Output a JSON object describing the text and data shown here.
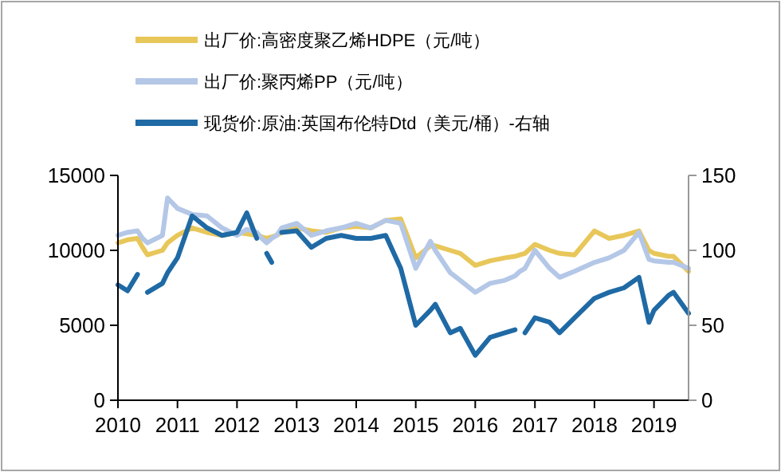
{
  "chart_data": {
    "type": "line",
    "legend": "top",
    "xlim": [
      "2010-01",
      "2019-08"
    ],
    "xticks": [
      "2010",
      "2011",
      "2012",
      "2013",
      "2014",
      "2015",
      "2016",
      "2017",
      "2018",
      "2019"
    ],
    "ylim": [
      0,
      15000
    ],
    "yticks": [
      0,
      5000,
      10000,
      15000
    ],
    "y2lim": [
      0,
      150
    ],
    "y2ticks": [
      0,
      50,
      100,
      150
    ],
    "x": [
      "2010-01",
      "2010-03",
      "2010-05",
      "2010-06",
      "2010-07",
      "2010-10",
      "2010-11",
      "2011-01",
      "2011-04",
      "2011-07",
      "2011-10",
      "2012-01",
      "2012-03",
      "2012-05",
      "2012-06",
      "2012-07",
      "2012-08",
      "2012-09",
      "2012-10",
      "2013-01",
      "2013-04",
      "2013-07",
      "2013-10",
      "2014-01",
      "2014-04",
      "2014-07",
      "2014-10",
      "2015-01",
      "2015-04",
      "2015-05",
      "2015-08",
      "2015-10",
      "2016-01",
      "2016-04",
      "2016-07",
      "2016-09",
      "2016-10",
      "2016-11",
      "2017-01",
      "2017-04",
      "2017-06",
      "2017-09",
      "2018-01",
      "2018-04",
      "2018-07",
      "2018-10",
      "2018-12",
      "2019-01",
      "2019-04",
      "2019-05",
      "2019-08"
    ],
    "series": [
      {
        "name": "出厂价:高密度聚乙烯HDPE（元/吨）",
        "color": "#e8c75a",
        "values": [
          10500,
          10700,
          10800,
          10200,
          9700,
          10000,
          10500,
          11000,
          11500,
          11200,
          11000,
          11200,
          11100,
          11000,
          10900,
          10800,
          10900,
          11000,
          11200,
          11500,
          11300,
          11200,
          11500,
          11600,
          11500,
          12000,
          12100,
          9500,
          10300,
          10300,
          10000,
          9800,
          9000,
          9300,
          9500,
          9600,
          9700,
          9800,
          10400,
          10000,
          9800,
          9700,
          11300,
          10800,
          11000,
          11300,
          10000,
          9800,
          9600,
          9600,
          8600
        ]
      },
      {
        "name": "出厂价:聚丙烯PP（元/吨）",
        "color": "#b4c7e7",
        "values": [
          11000,
          11200,
          11300,
          10800,
          10500,
          11000,
          13500,
          12800,
          12400,
          12300,
          11500,
          11000,
          11400,
          11200,
          10800,
          10500,
          10800,
          11000,
          11500,
          11800,
          11000,
          11300,
          11500,
          11800,
          11500,
          12000,
          11800,
          8800,
          10600,
          10000,
          8500,
          8000,
          7200,
          7800,
          8000,
          8300,
          8600,
          8800,
          10000,
          8800,
          8200,
          8600,
          9200,
          9500,
          10000,
          11200,
          9400,
          9300,
          9200,
          9200,
          8800
        ]
      },
      {
        "name": "现货价:原油:英国布伦特Dtd（美元/桶）-右轴",
        "color": "#1f6aa5",
        "axis": "y2",
        "values": [
          77,
          73,
          84,
          null,
          72,
          78,
          85,
          95,
          123,
          115,
          110,
          112,
          125,
          108,
          null,
          98,
          92,
          null,
          112,
          113,
          102,
          108,
          110,
          108,
          108,
          110,
          88,
          50,
          60,
          64,
          45,
          48,
          30,
          42,
          45,
          47,
          null,
          45,
          55,
          52,
          45,
          55,
          68,
          72,
          75,
          82,
          52,
          60,
          70,
          72,
          58
        ]
      }
    ]
  }
}
